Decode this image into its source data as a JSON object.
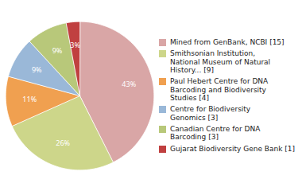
{
  "chart_data": {
    "type": "pie",
    "categories": [
      "Mined from GenBank, NCBI [15]",
      "Smithsonian Institution,\nNational Museum of Natural\nHistory... [9]",
      "Paul Hebert Centre for DNA\nBarcoding and Biodiversity\nStudies [4]",
      "Centre for Biodiversity\nGenomics [3]",
      "Canadian Centre for DNA\nBarcoding [3]",
      "Gujarat Biodiversity Gene Bank [1]"
    ],
    "values": [
      43,
      26,
      11,
      9,
      9,
      3
    ],
    "value_labels": [
      "43%",
      "26%",
      "11%",
      "9%",
      "9%",
      "3%"
    ],
    "data_labels": true,
    "colors": [
      "#d9a6a6",
      "#cdd68a",
      "#f0a050",
      "#9ab8d8",
      "#b8c87a",
      "#c04040"
    ],
    "legend": "right"
  }
}
